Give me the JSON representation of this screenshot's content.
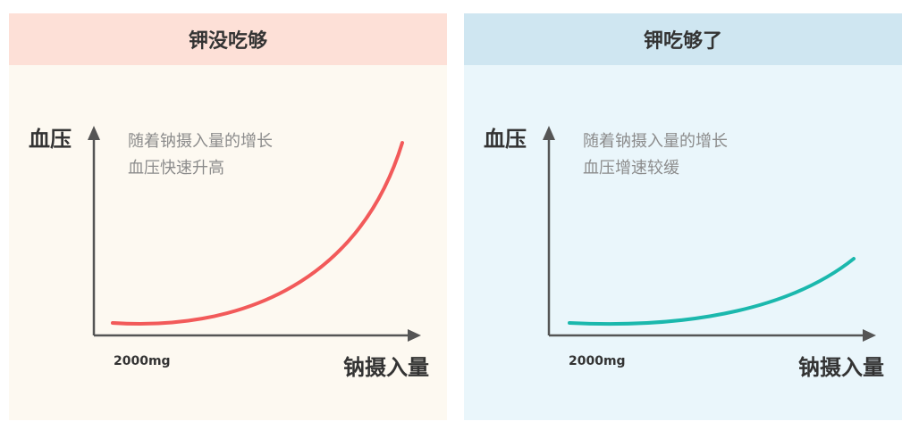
{
  "panels": [
    {
      "title": "钾没吃够",
      "y_axis_label": "血压",
      "x_axis_label": "钠摄入量",
      "x_tick": "2000mg",
      "note_lines": [
        "随着钠摄入量的增长",
        "血压快速升高"
      ],
      "curve_color": "#f25a5a",
      "trend": "rapid increase"
    },
    {
      "title": "钾吃够了",
      "y_axis_label": "血压",
      "x_axis_label": "钠摄入量",
      "x_tick": "2000mg",
      "note_lines": [
        "随着钠摄入量的增长",
        "血压增速较缓"
      ],
      "curve_color": "#1bb8ad",
      "trend": "gradual increase"
    }
  ],
  "colors": {
    "left_header_bg": "#fde0d7",
    "left_panel_bg": "#fdf9f1",
    "right_header_bg": "#cfe6f1",
    "right_panel_bg": "#eaf6fb",
    "axis": "#555555"
  }
}
